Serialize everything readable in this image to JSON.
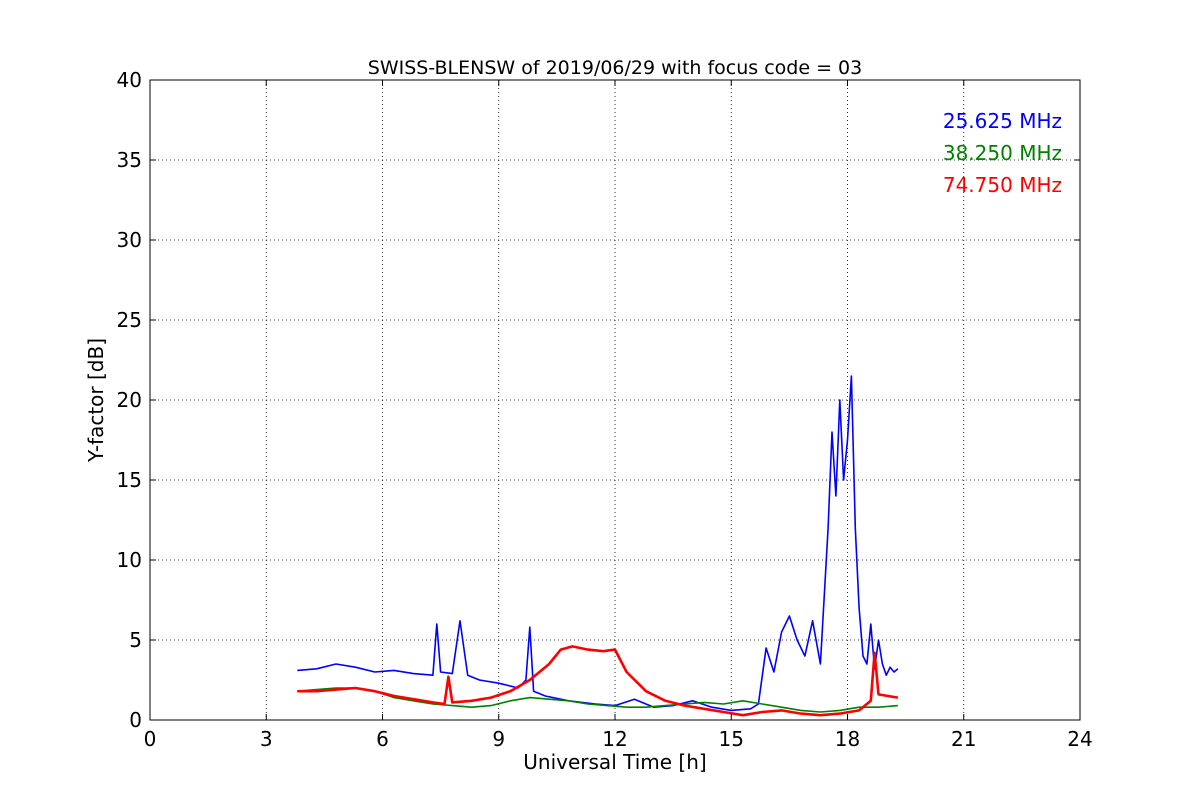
{
  "chart_data": {
    "type": "line",
    "title": "SWISS-BLENSW of 2019/06/29 with focus code = 03",
    "xlabel": "Universal Time [h]",
    "ylabel": "Y-factor [dB]",
    "xlim": [
      0,
      24
    ],
    "ylim": [
      0,
      40
    ],
    "xticks": [
      0,
      3,
      6,
      9,
      12,
      15,
      18,
      21,
      24
    ],
    "yticks": [
      0,
      5,
      10,
      15,
      20,
      25,
      30,
      35,
      40
    ],
    "grid": true,
    "legend_position": "top-right",
    "series": [
      {
        "name": "25.625 MHz",
        "color": "#0000ff",
        "x": [
          3.8,
          4.3,
          4.8,
          5.3,
          5.8,
          6.3,
          6.8,
          7.3,
          7.4,
          7.5,
          7.8,
          8.0,
          8.2,
          8.5,
          9.0,
          9.5,
          9.7,
          9.8,
          9.9,
          10.2,
          10.8,
          11.5,
          12.0,
          12.5,
          13.0,
          13.5,
          14.0,
          14.5,
          15.0,
          15.5,
          15.7,
          15.9,
          16.1,
          16.3,
          16.5,
          16.7,
          16.9,
          17.1,
          17.3,
          17.5,
          17.6,
          17.7,
          17.8,
          17.9,
          18.0,
          18.1,
          18.2,
          18.3,
          18.4,
          18.5,
          18.6,
          18.7,
          18.8,
          18.9,
          19.0,
          19.1,
          19.2,
          19.3
        ],
        "y": [
          3.1,
          3.2,
          3.5,
          3.3,
          3.0,
          3.1,
          2.9,
          2.8,
          6.0,
          3.0,
          2.9,
          6.2,
          2.8,
          2.5,
          2.3,
          2.0,
          2.5,
          5.8,
          1.8,
          1.5,
          1.2,
          1.0,
          0.9,
          1.3,
          0.8,
          0.9,
          1.2,
          0.8,
          0.6,
          0.7,
          1.0,
          4.5,
          3.0,
          5.5,
          6.5,
          5.0,
          4.0,
          6.2,
          3.5,
          12.0,
          18.0,
          14.0,
          20.0,
          15.0,
          17.5,
          21.5,
          12.0,
          7.0,
          4.0,
          3.5,
          6.0,
          3.2,
          5.0,
          3.5,
          2.8,
          3.3,
          3.0,
          3.2
        ]
      },
      {
        "name": "38.250 MHz",
        "color": "#008000",
        "x": [
          3.8,
          4.3,
          4.8,
          5.3,
          5.8,
          6.3,
          6.8,
          7.3,
          7.8,
          8.3,
          8.8,
          9.3,
          9.8,
          10.3,
          10.8,
          11.3,
          11.8,
          12.3,
          12.8,
          13.3,
          13.8,
          14.3,
          14.8,
          15.3,
          15.8,
          16.3,
          16.8,
          17.3,
          17.8,
          18.3,
          18.8,
          19.3
        ],
        "y": [
          1.8,
          1.9,
          2.0,
          2.0,
          1.8,
          1.4,
          1.2,
          1.0,
          0.9,
          0.8,
          0.9,
          1.2,
          1.4,
          1.3,
          1.2,
          1.0,
          0.9,
          0.8,
          0.8,
          0.9,
          1.0,
          1.1,
          1.0,
          1.2,
          1.0,
          0.8,
          0.6,
          0.5,
          0.6,
          0.8,
          0.8,
          0.9
        ]
      },
      {
        "name": "74.750 MHz",
        "color": "#ff0000",
        "x": [
          3.8,
          4.3,
          4.8,
          5.3,
          5.8,
          6.3,
          6.8,
          7.3,
          7.6,
          7.7,
          7.8,
          8.3,
          8.8,
          9.3,
          9.8,
          10.3,
          10.6,
          10.9,
          11.3,
          11.7,
          12.0,
          12.3,
          12.8,
          13.3,
          13.8,
          14.3,
          14.8,
          15.3,
          15.8,
          16.3,
          16.8,
          17.3,
          17.8,
          18.3,
          18.6,
          18.7,
          18.8,
          19.3
        ],
        "y": [
          1.8,
          1.8,
          1.9,
          2.0,
          1.8,
          1.5,
          1.3,
          1.1,
          1.0,
          2.7,
          1.1,
          1.2,
          1.4,
          1.8,
          2.5,
          3.5,
          4.4,
          4.6,
          4.4,
          4.3,
          4.4,
          3.0,
          1.8,
          1.2,
          0.9,
          0.7,
          0.5,
          0.3,
          0.5,
          0.6,
          0.4,
          0.3,
          0.4,
          0.6,
          1.2,
          4.2,
          1.6,
          1.4
        ]
      }
    ]
  }
}
